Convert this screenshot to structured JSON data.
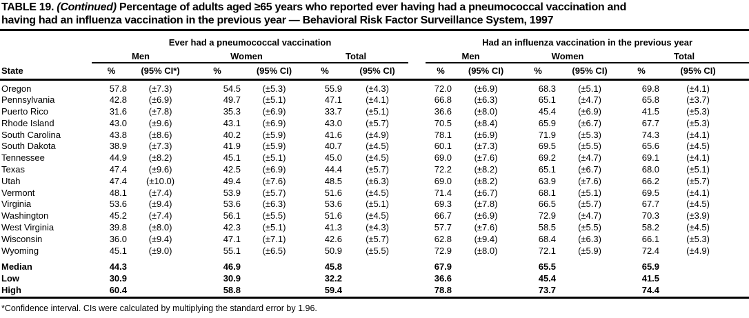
{
  "title": {
    "line1_prefix": "TABLE 19.",
    "line1_continued": "(Continued)",
    "line1_rest": "Percentage of adults aged ≥65 years who reported ever having had a pneumococcal vaccination and",
    "line2": "having had an influenza vaccination in the previous year — Behavioral Risk Factor Surveillance System, 1997"
  },
  "table": {
    "state_header": "State",
    "group_headers": [
      "Ever had a pneumococcal vaccination",
      "Had an influenza vaccination in the previous year"
    ],
    "subgroup_headers": [
      "Men",
      "Women",
      "Total"
    ],
    "column_headers": {
      "percent": "%",
      "ci_first": "(95% CI*)",
      "ci": "(95% CI)"
    },
    "rows": [
      {
        "state": "Oregon",
        "values": [
          "57.8",
          "(±7.3)",
          "54.5",
          "(±5.3)",
          "55.9",
          "(±4.3)",
          "72.0",
          "(±6.9)",
          "68.3",
          "(±5.1)",
          "69.8",
          "(±4.1)"
        ]
      },
      {
        "state": "Pennsylvania",
        "values": [
          "42.8",
          "(±6.9)",
          "49.7",
          "(±5.1)",
          "47.1",
          "(±4.1)",
          "66.8",
          "(±6.3)",
          "65.1",
          "(±4.7)",
          "65.8",
          "(±3.7)"
        ]
      },
      {
        "state": "Puerto Rico",
        "values": [
          "31.6",
          "(±7.8)",
          "35.3",
          "(±6.9)",
          "33.7",
          "(±5.1)",
          "36.6",
          "(±8.0)",
          "45.4",
          "(±6.9)",
          "41.5",
          "(±5.3)"
        ]
      },
      {
        "state": "Rhode Island",
        "values": [
          "43.0",
          "(±9.6)",
          "43.1",
          "(±6.9)",
          "43.0",
          "(±5.7)",
          "70.5",
          "(±8.4)",
          "65.9",
          "(±6.7)",
          "67.7",
          "(±5.3)"
        ]
      },
      {
        "state": "South Carolina",
        "values": [
          "43.8",
          "(±8.6)",
          "40.2",
          "(±5.9)",
          "41.6",
          "(±4.9)",
          "78.1",
          "(±6.9)",
          "71.9",
          "(±5.3)",
          "74.3",
          "(±4.1)"
        ]
      },
      {
        "state": "South Dakota",
        "values": [
          "38.9",
          "(±7.3)",
          "41.9",
          "(±5.9)",
          "40.7",
          "(±4.5)",
          "60.1",
          "(±7.3)",
          "69.5",
          "(±5.5)",
          "65.6",
          "(±4.5)"
        ]
      },
      {
        "state": "Tennessee",
        "values": [
          "44.9",
          "(±8.2)",
          "45.1",
          "(±5.1)",
          "45.0",
          "(±4.5)",
          "69.0",
          "(±7.6)",
          "69.2",
          "(±4.7)",
          "69.1",
          "(±4.1)"
        ]
      },
      {
        "state": "Texas",
        "values": [
          "47.4",
          "(±9.6)",
          "42.5",
          "(±6.9)",
          "44.4",
          "(±5.7)",
          "72.2",
          "(±8.2)",
          "65.1",
          "(±6.7)",
          "68.0",
          "(±5.1)"
        ]
      },
      {
        "state": "Utah",
        "values": [
          "47.4",
          "(±10.0)",
          "49.4",
          "(±7.6)",
          "48.5",
          "(±6.3)",
          "69.0",
          "(±8.2)",
          "63.9",
          "(±7.6)",
          "66.2",
          "(±5.7)"
        ]
      },
      {
        "state": "Vermont",
        "values": [
          "48.1",
          "(±7.4)",
          "53.9",
          "(±5.7)",
          "51.6",
          "(±4.5)",
          "71.4",
          "(±6.7)",
          "68.1",
          "(±5.1)",
          "69.5",
          "(±4.1)"
        ]
      },
      {
        "state": "Virginia",
        "values": [
          "53.6",
          "(±9.4)",
          "53.6",
          "(±6.3)",
          "53.6",
          "(±5.1)",
          "69.3",
          "(±7.8)",
          "66.5",
          "(±5.7)",
          "67.7",
          "(±4.5)"
        ]
      },
      {
        "state": "Washington",
        "values": [
          "45.2",
          "(±7.4)",
          "56.1",
          "(±5.5)",
          "51.6",
          "(±4.5)",
          "66.7",
          "(±6.9)",
          "72.9",
          "(±4.7)",
          "70.3",
          "(±3.9)"
        ]
      },
      {
        "state": "West Virginia",
        "values": [
          "39.8",
          "(±8.0)",
          "42.3",
          "(±5.1)",
          "41.3",
          "(±4.3)",
          "57.7",
          "(±7.6)",
          "58.5",
          "(±5.5)",
          "58.2",
          "(±4.5)"
        ]
      },
      {
        "state": "Wisconsin",
        "values": [
          "36.0",
          "(±9.4)",
          "47.1",
          "(±7.1)",
          "42.6",
          "(±5.7)",
          "62.8",
          "(±9.4)",
          "68.4",
          "(±6.3)",
          "66.1",
          "(±5.3)"
        ]
      },
      {
        "state": "Wyoming",
        "values": [
          "45.1",
          "(±9.0)",
          "55.1",
          "(±6.5)",
          "50.9",
          "(±5.5)",
          "72.9",
          "(±8.0)",
          "72.1",
          "(±5.9)",
          "72.4",
          "(±4.9)"
        ]
      }
    ],
    "summary_rows": [
      {
        "state": "Median",
        "values": [
          "44.3",
          "",
          "46.9",
          "",
          "45.8",
          "",
          "67.9",
          "",
          "65.5",
          "",
          "65.9",
          ""
        ]
      },
      {
        "state": "Low",
        "values": [
          "30.9",
          "",
          "30.9",
          "",
          "32.2",
          "",
          "36.6",
          "",
          "45.4",
          "",
          "41.5",
          ""
        ]
      },
      {
        "state": "High",
        "values": [
          "60.4",
          "",
          "58.8",
          "",
          "59.4",
          "",
          "78.8",
          "",
          "73.7",
          "",
          "74.4",
          ""
        ]
      }
    ]
  },
  "footnote": "*Confidence interval. CIs were calculated by multiplying the standard error by 1.96."
}
